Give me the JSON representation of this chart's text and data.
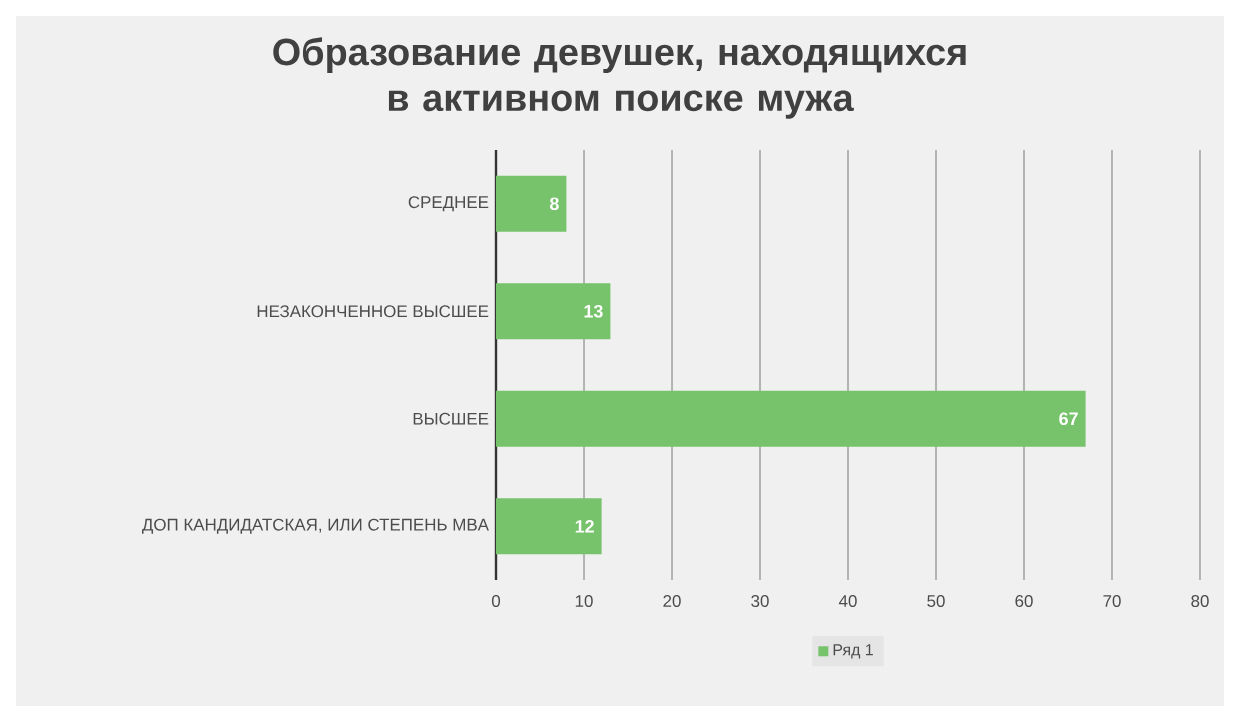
{
  "chart_data": {
    "type": "bar",
    "orientation": "horizontal",
    "title": "Образование девушек, находящихся в активном поиске мужа",
    "categories": [
      "СРЕДНЕЕ",
      "НЕЗАКОНЧЕННОЕ ВЫСШЕЕ",
      "ВЫСШЕЕ",
      "ДОП КАНДИДАТСКАЯ, ИЛИ СТЕПЕНЬ MBA"
    ],
    "series": [
      {
        "name": "Ряд 1",
        "color": "#77c36b",
        "values": [
          8,
          13,
          67,
          12
        ]
      }
    ],
    "xlim": [
      0,
      80
    ],
    "xticks": [
      0,
      10,
      20,
      30,
      40,
      50,
      60,
      70,
      80
    ],
    "grid": "x",
    "legend": "bottom",
    "data_labels": true
  }
}
